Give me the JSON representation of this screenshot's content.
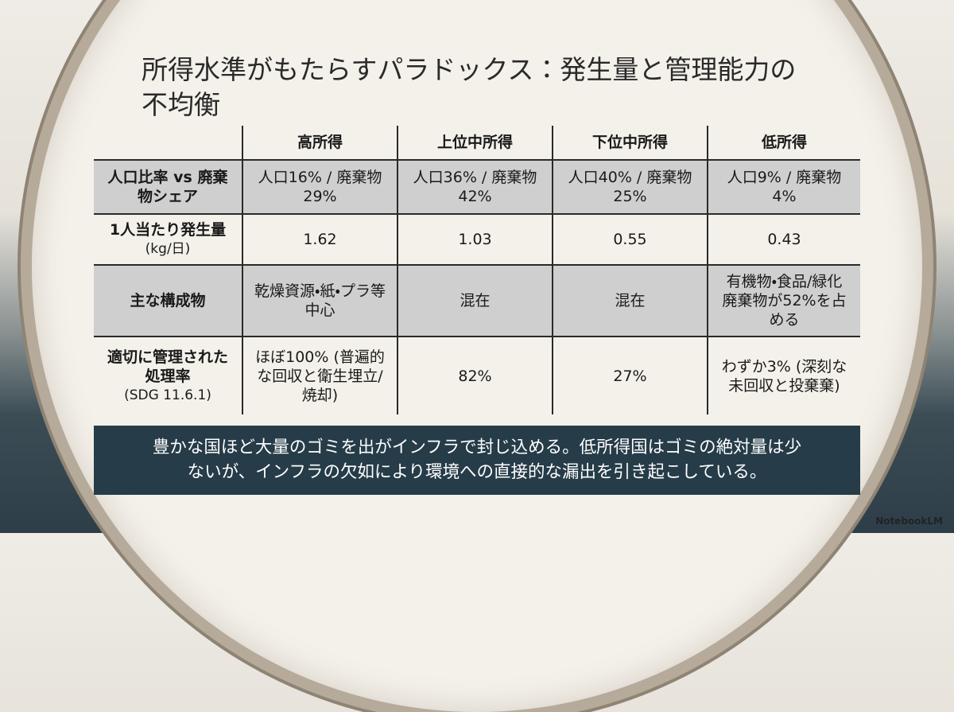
{
  "title": "所得水準がもたらすパラドックス：発生量と管理能力の不均衡",
  "table": {
    "header": [
      "高所得",
      "上位中所得",
      "下位中所得",
      "低所得"
    ],
    "rows": [
      {
        "label": "人口比率 vs 廃棄物シェア",
        "cells": [
          "人口16% / 廃棄物29%",
          "人口36% / 廃棄物42%",
          "人口40% / 廃棄物25%",
          "人口9% / 廃棄物4%"
        ]
      },
      {
        "label": "1人当たり発生量",
        "note": "(kg/日)",
        "cells": [
          "1.62",
          "1.03",
          "0.55",
          "0.43"
        ]
      },
      {
        "label": "主な構成物",
        "cells": [
          "乾燥資源・紙・プラ等中心",
          "混在",
          "混在",
          "有機物・食品/緑化廃棄物が52%を占める"
        ]
      },
      {
        "label": "適切に管理された処理率",
        "note": "(SDG 11.6.1)",
        "cells": [
          "ほぼ100% (普遍的な回収と衛生埋立/焼却)",
          "82%",
          "27%",
          "わずか3% (深刻な未回収と投棄棄)"
        ]
      }
    ]
  },
  "summary": "豊かな国ほど大量のゴミを出がインフラで封じ込める。低所得国はゴミの絶対量は少ないが、インフラの欠如により環境への直接的な漏出を引き起こしている。",
  "brand": "NotebookLM"
}
